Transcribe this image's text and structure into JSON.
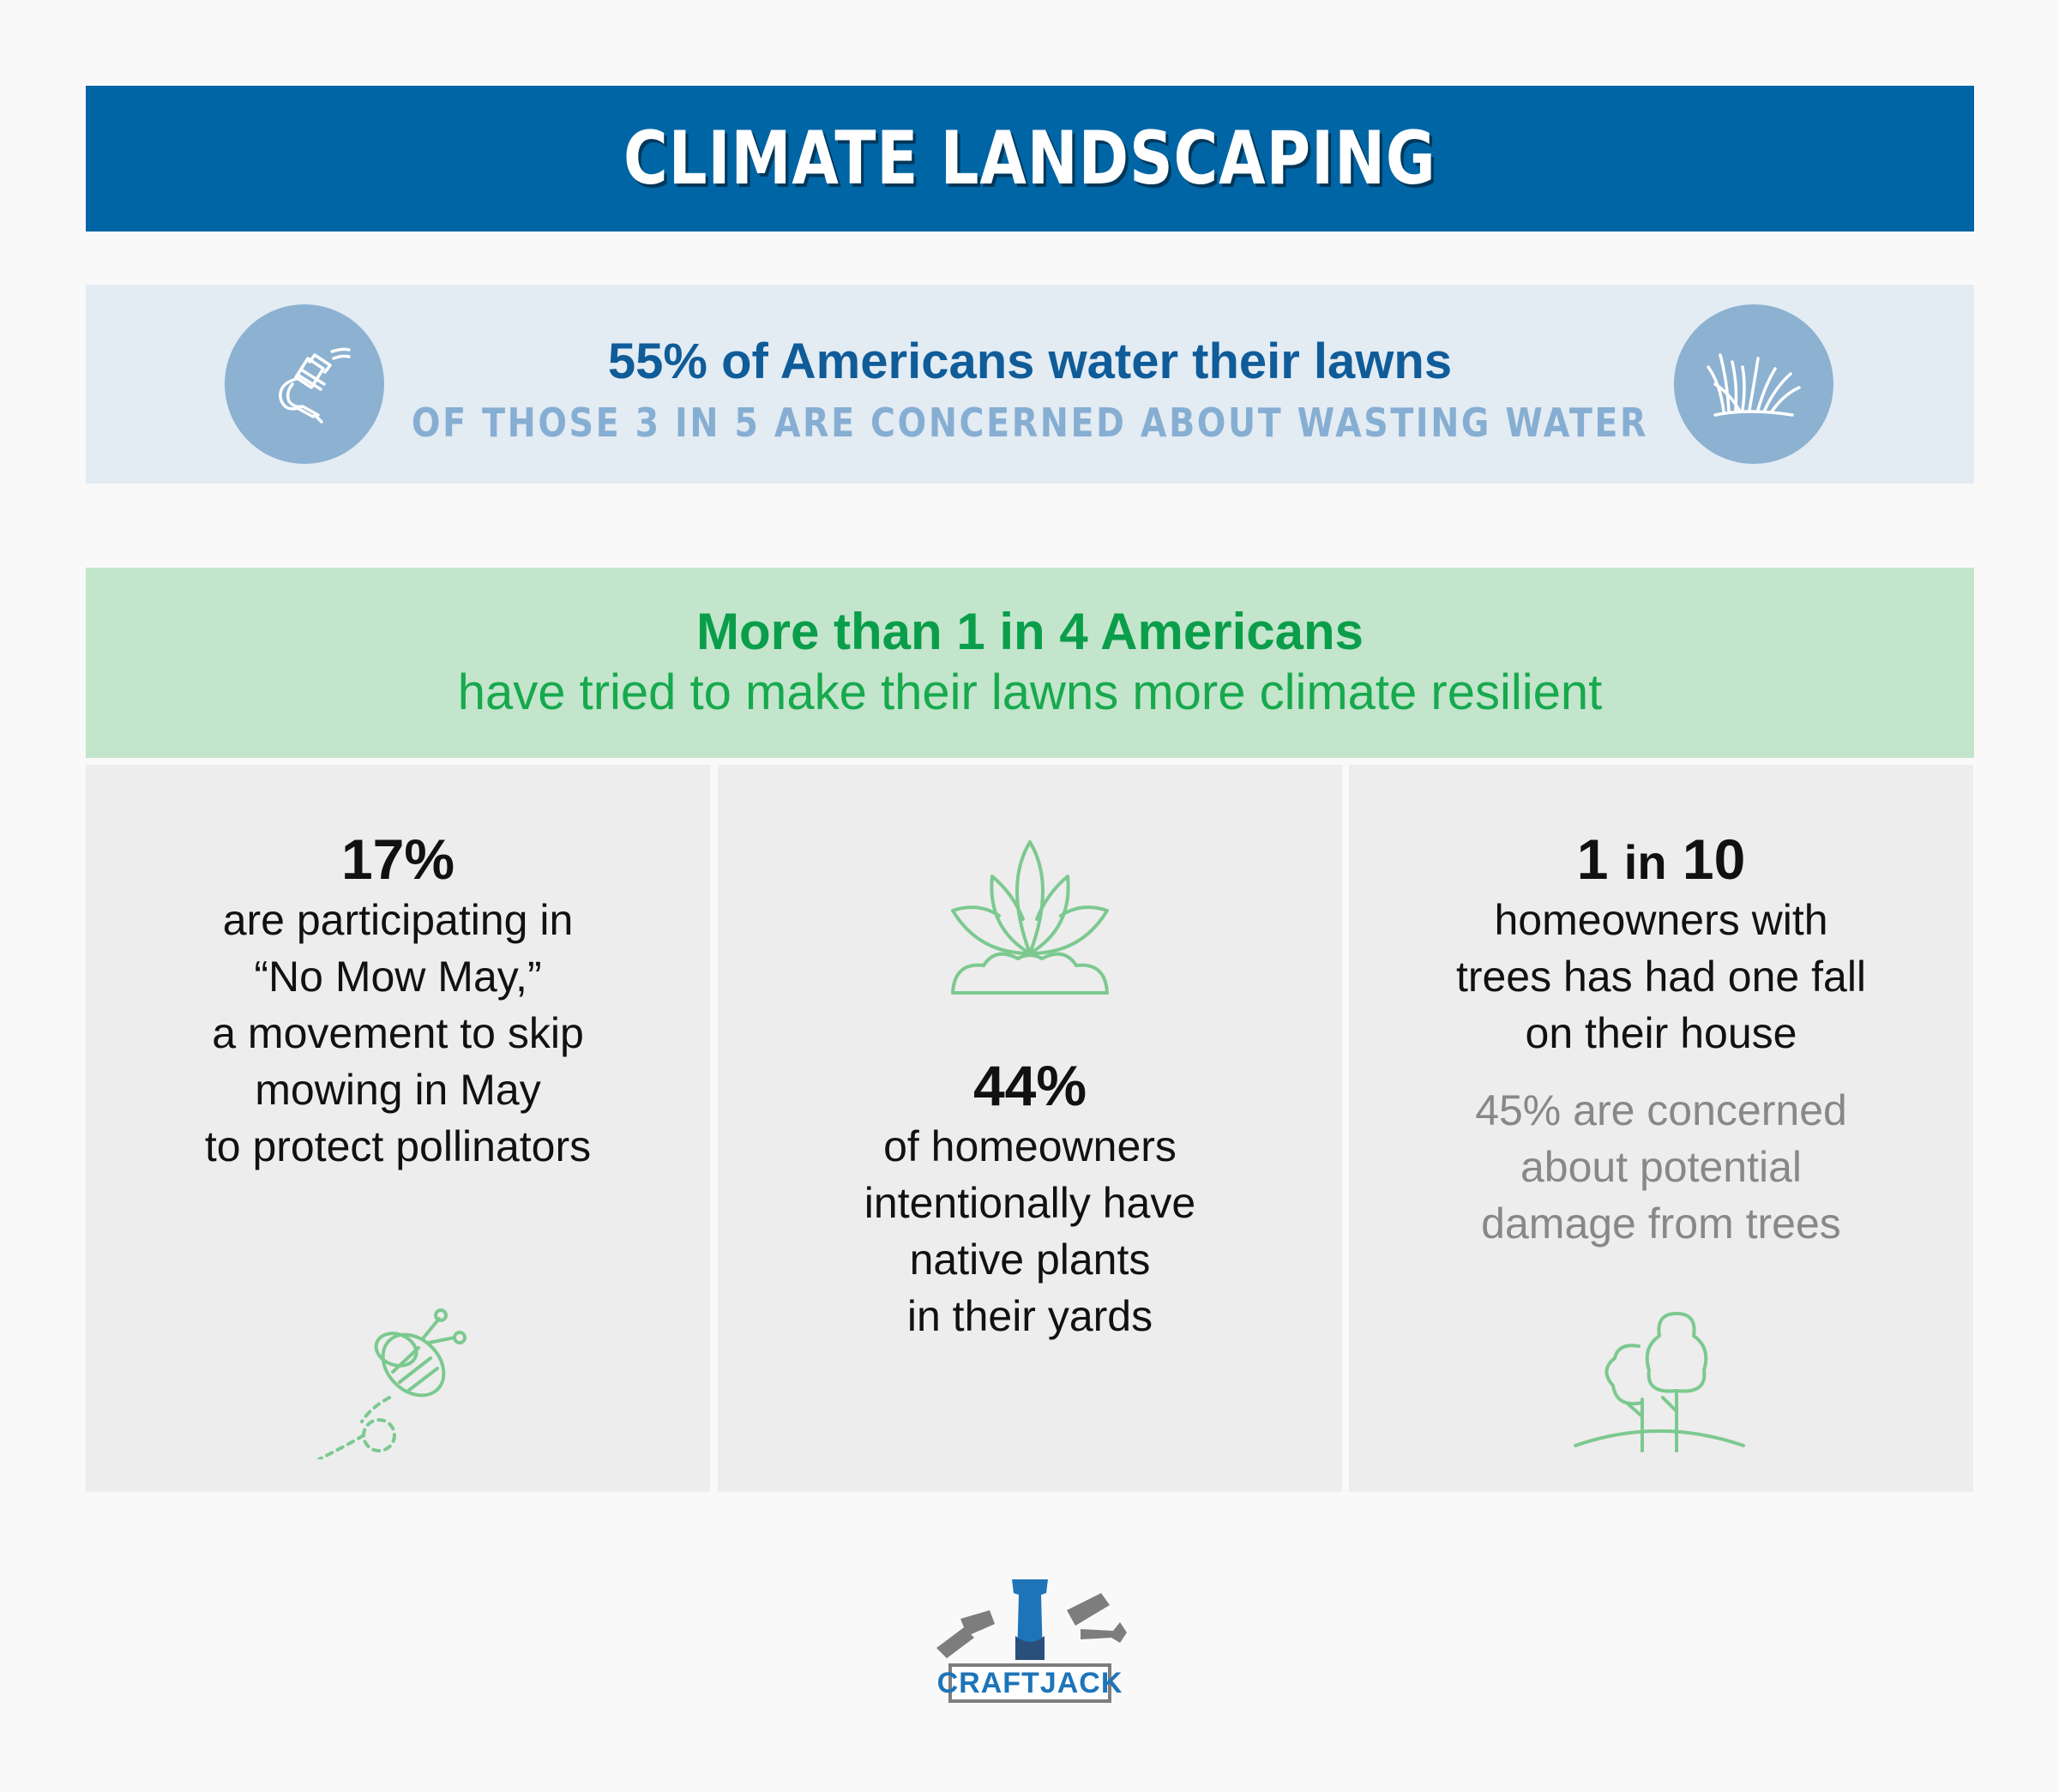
{
  "title": "CLIMATE LANDSCAPING",
  "water": {
    "headline": "55% of Americans water their lawns",
    "subline": "OF THOSE 3 IN 5 ARE CONCERNED ABOUT WASTING WATER",
    "left_icon": "hose-nozzle-icon",
    "right_icon": "grass-icon"
  },
  "resilience": {
    "headline": "More than 1 in 4 Americans",
    "subline": "have tried to make their lawns more climate resilient"
  },
  "panels": [
    {
      "stat": "17%",
      "lines": [
        "are participating in",
        "“No Mow May,”",
        "a movement to skip",
        "mowing in May",
        "to protect pollinators"
      ],
      "icon": "bee-icon"
    },
    {
      "stat": "44%",
      "lines": [
        "of homeowners",
        "intentionally have",
        "native plants",
        "in their yards"
      ],
      "icon": "plant-icon"
    },
    {
      "stat_num1": "1",
      "stat_mid": "in",
      "stat_num2": "10",
      "lines": [
        "homeowners with",
        "trees has had one fall",
        "on their house"
      ],
      "secondary_lines": [
        "45% are concerned",
        "about potential",
        "damage from trees"
      ],
      "icon": "trees-icon"
    }
  ],
  "logo": {
    "text": "CRAFTJACK"
  },
  "colors": {
    "banner_blue": "#0065a4",
    "water_band": "#e3ebf3",
    "icon_circle": "#8cb1d1",
    "green_band": "#c3e5cb",
    "green_text": "#0a9e4a",
    "panel_bg": "#ededed",
    "icon_green": "#7cc98f"
  }
}
